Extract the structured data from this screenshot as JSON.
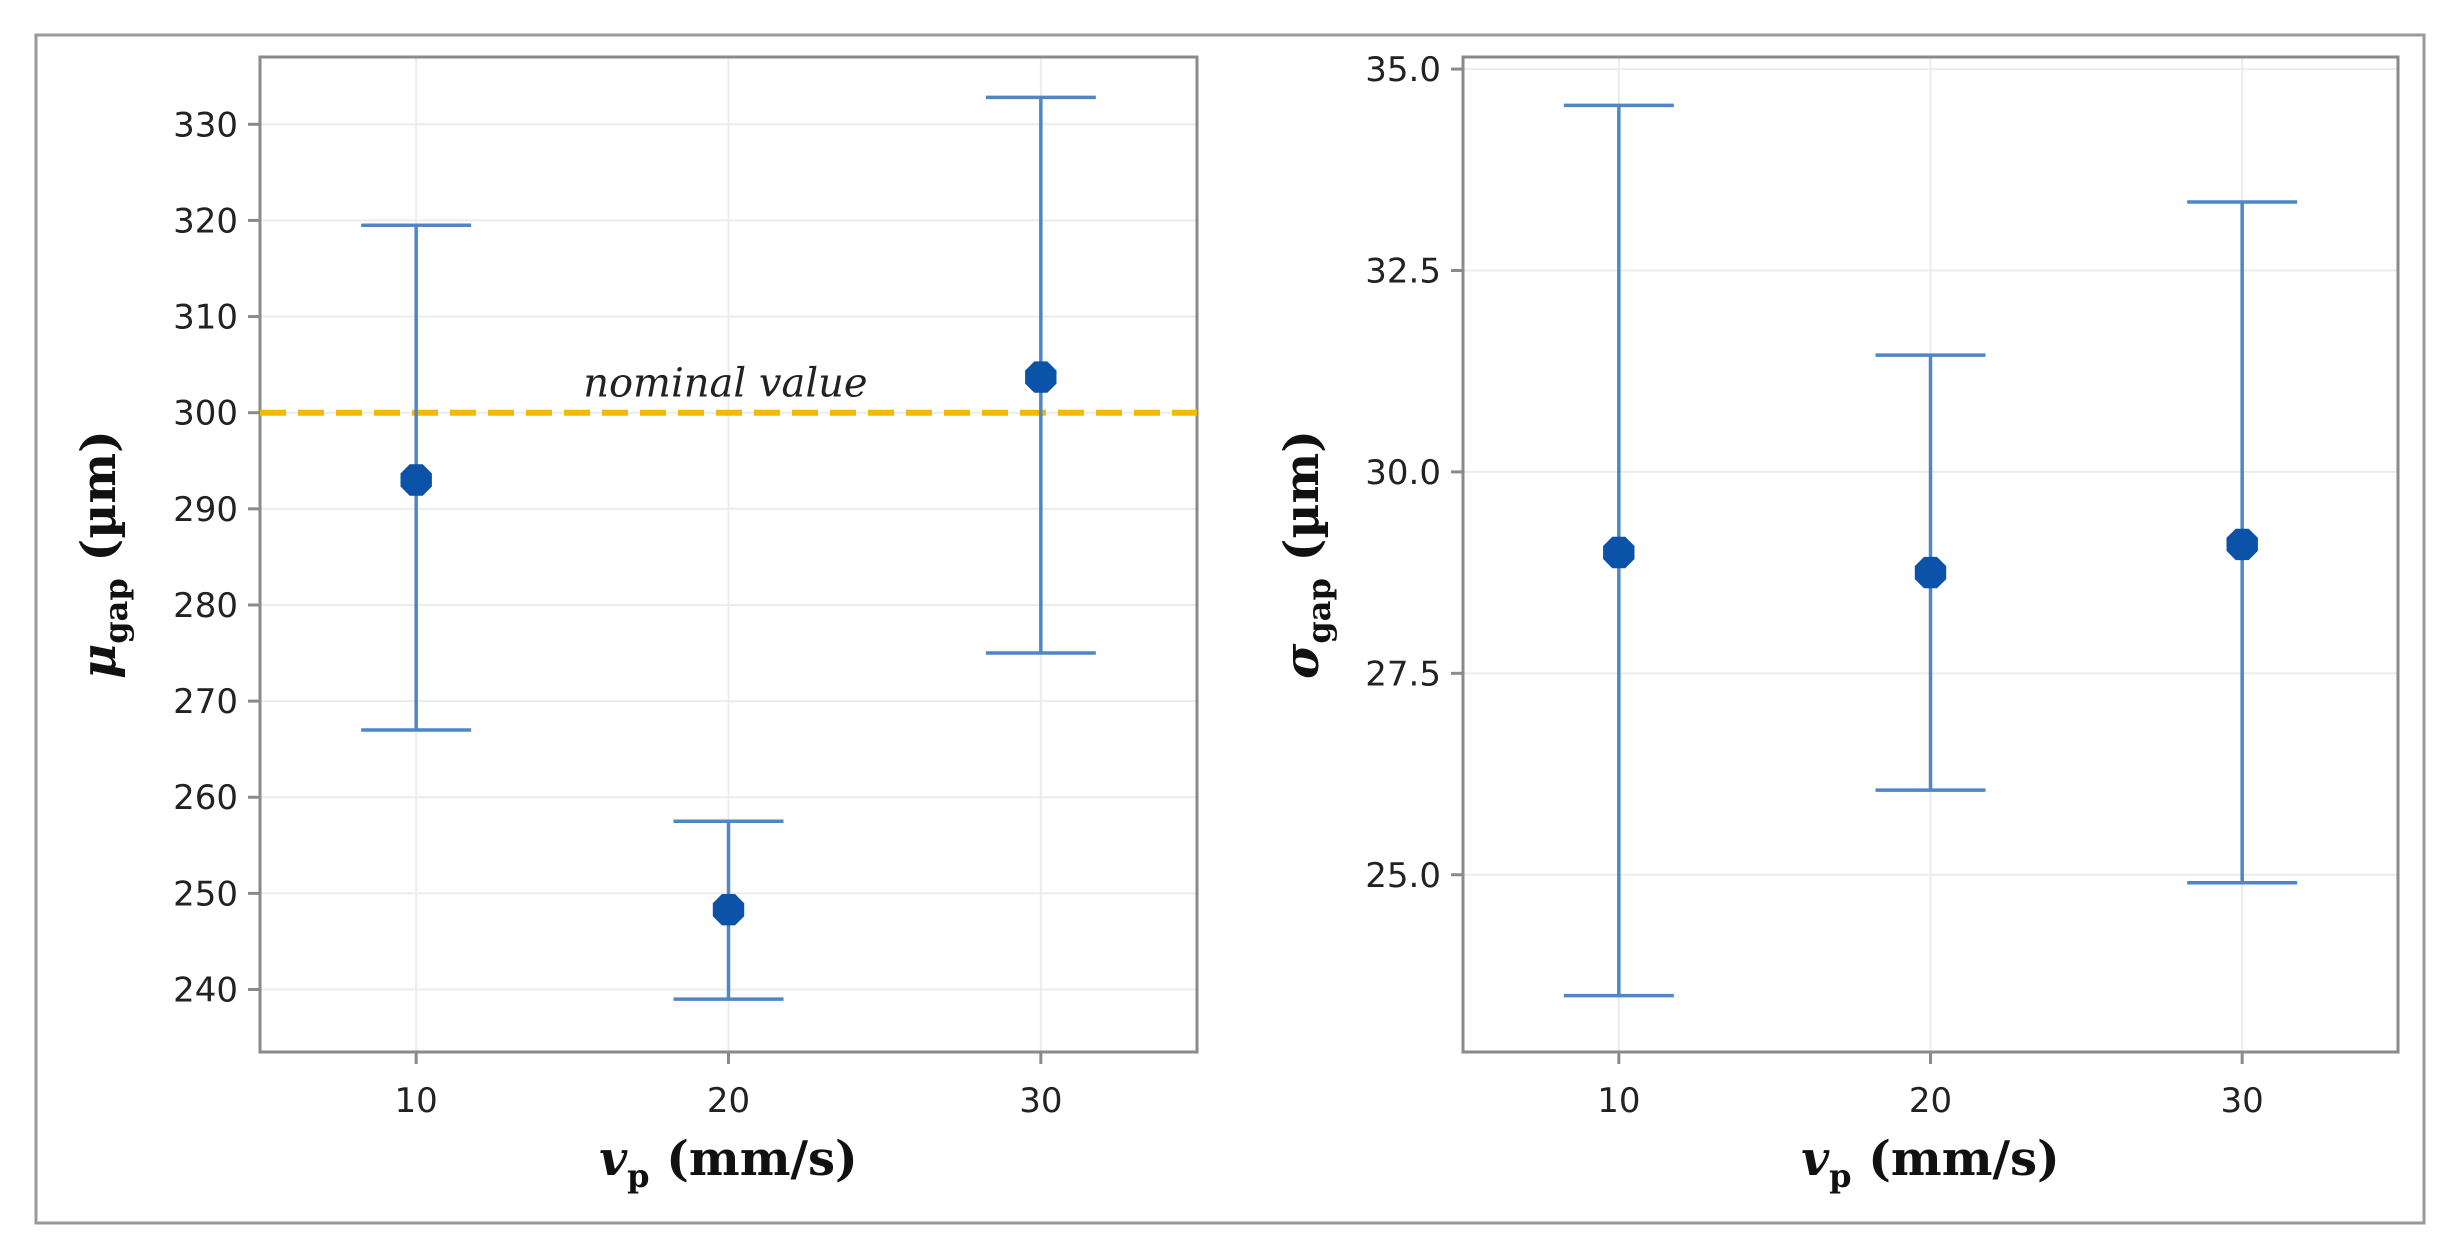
{
  "colors": {
    "series": "#4f86c6",
    "marker": "#0b53a8",
    "reference": "#f5b800",
    "grid": "#ececec",
    "frame": "#8a8a8a"
  },
  "chart_data": [
    {
      "type": "scatter",
      "error_bars": true,
      "x": [
        10,
        20,
        30
      ],
      "xticks": [
        "10",
        "20",
        "30"
      ],
      "xlim": [
        5,
        35
      ],
      "ylim": [
        233.5,
        337
      ],
      "yticks": [
        240,
        250,
        260,
        270,
        280,
        290,
        300,
        310,
        320,
        330
      ],
      "ytick_labels": [
        "240",
        "250",
        "260",
        "270",
        "280",
        "290",
        "300",
        "310",
        "320",
        "330"
      ],
      "y": [
        293,
        248.3,
        303.7
      ],
      "y_lower": [
        267,
        239,
        275
      ],
      "y_upper": [
        319.5,
        257.5,
        332.8
      ],
      "xlabel": {
        "main": "v",
        "sub": "p",
        "rest": " (mm/s)"
      },
      "ylabel": {
        "main": "μ",
        "sub": "gap",
        "rest": " (µm)"
      },
      "reference_line": {
        "y": 300,
        "label": "nominal value"
      },
      "grid": true
    },
    {
      "type": "scatter",
      "error_bars": true,
      "x": [
        10,
        20,
        30
      ],
      "xticks": [
        "10",
        "20",
        "30"
      ],
      "xlim": [
        5,
        35
      ],
      "ylim": [
        22.8,
        35.15
      ],
      "yticks": [
        25.0,
        27.5,
        30.0,
        32.5,
        35.0
      ],
      "ytick_labels": [
        "25.0",
        "27.5",
        "30.0",
        "32.5",
        "35.0"
      ],
      "y": [
        29.0,
        28.75,
        29.1
      ],
      "y_lower": [
        23.5,
        26.05,
        24.9
      ],
      "y_upper": [
        34.55,
        31.45,
        33.35
      ],
      "xlabel": {
        "main": "v",
        "sub": "p",
        "rest": " (mm/s)"
      },
      "ylabel": {
        "main": "σ",
        "sub": "gap",
        "rest": " (µm)"
      },
      "grid": true
    }
  ]
}
